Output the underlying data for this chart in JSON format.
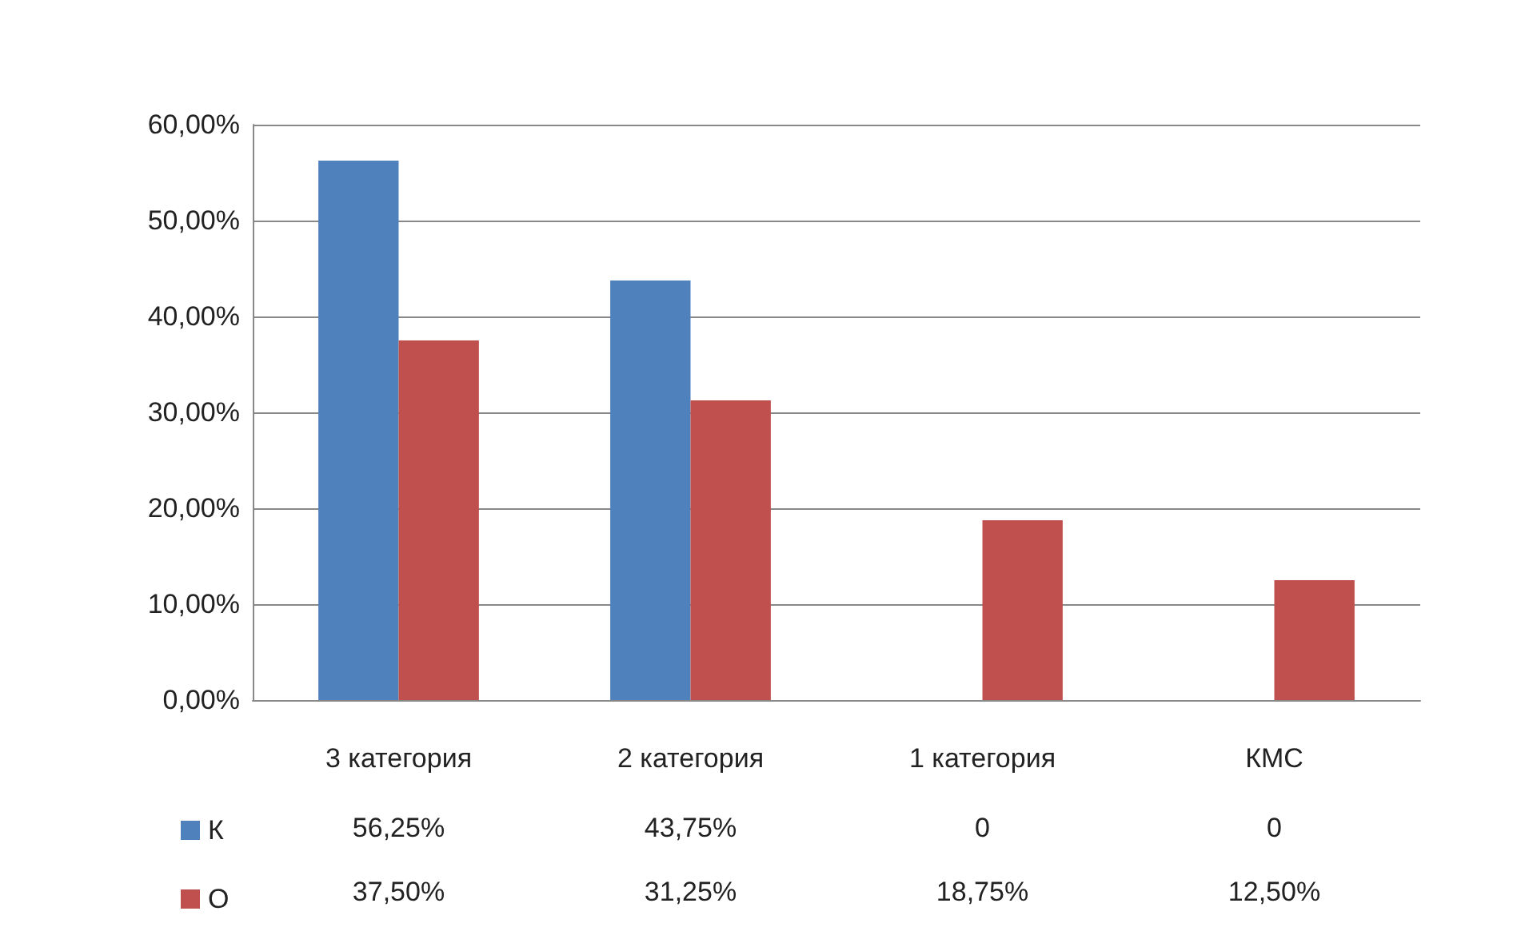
{
  "chart_data": {
    "type": "bar",
    "categories": [
      "3 категория",
      "2 категория",
      "1 категория",
      "КМС"
    ],
    "series": [
      {
        "name": "К",
        "color": "#4f81bd",
        "values": [
          56.25,
          43.75,
          0,
          0
        ],
        "value_labels": [
          "56,25%",
          "43,75%",
          "0",
          "0"
        ]
      },
      {
        "name": "О",
        "color": "#c0504d",
        "values": [
          37.5,
          31.25,
          18.75,
          12.5
        ],
        "value_labels": [
          "37,50%",
          "31,25%",
          "18,75%",
          "12,50%"
        ]
      }
    ],
    "ylim": [
      0,
      60
    ],
    "yticks": [
      {
        "value": 0,
        "label": "0,00%"
      },
      {
        "value": 10,
        "label": "10,00%"
      },
      {
        "value": 20,
        "label": "20,00%"
      },
      {
        "value": 30,
        "label": "30,00%"
      },
      {
        "value": 40,
        "label": "40,00%"
      },
      {
        "value": 50,
        "label": "50,00%"
      },
      {
        "value": 60,
        "label": "60,00%"
      }
    ],
    "grid": "y",
    "legend": "bottom left"
  }
}
